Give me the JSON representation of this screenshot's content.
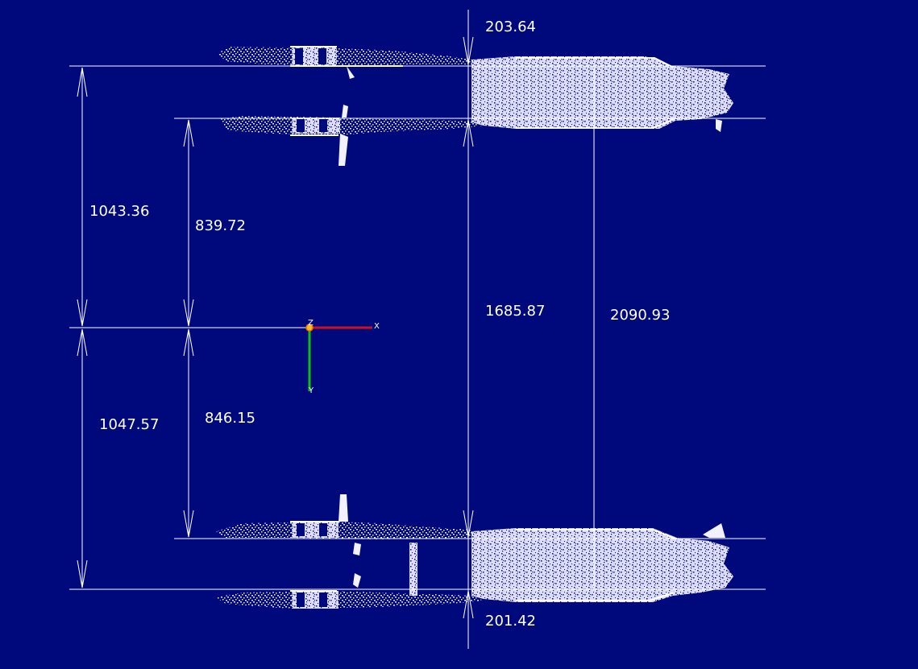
{
  "dimensions": {
    "top_offset": "203.64",
    "outer_upper": "1043.36",
    "inner_upper": "839.72",
    "center_span": "1685.87",
    "full_span": "2090.93",
    "outer_lower": "1047.57",
    "inner_lower": "846.15",
    "bottom_offset": "201.42"
  },
  "axes": {
    "x_label": "X",
    "y_label": "Y",
    "z_label": "Z",
    "x_color": "#d0101a",
    "y_color": "#10c010",
    "origin_color": "#f0c020"
  },
  "colors": {
    "background": "#00097c",
    "annotation": "#ffffff",
    "point_cloud": "#f2f2ff"
  }
}
